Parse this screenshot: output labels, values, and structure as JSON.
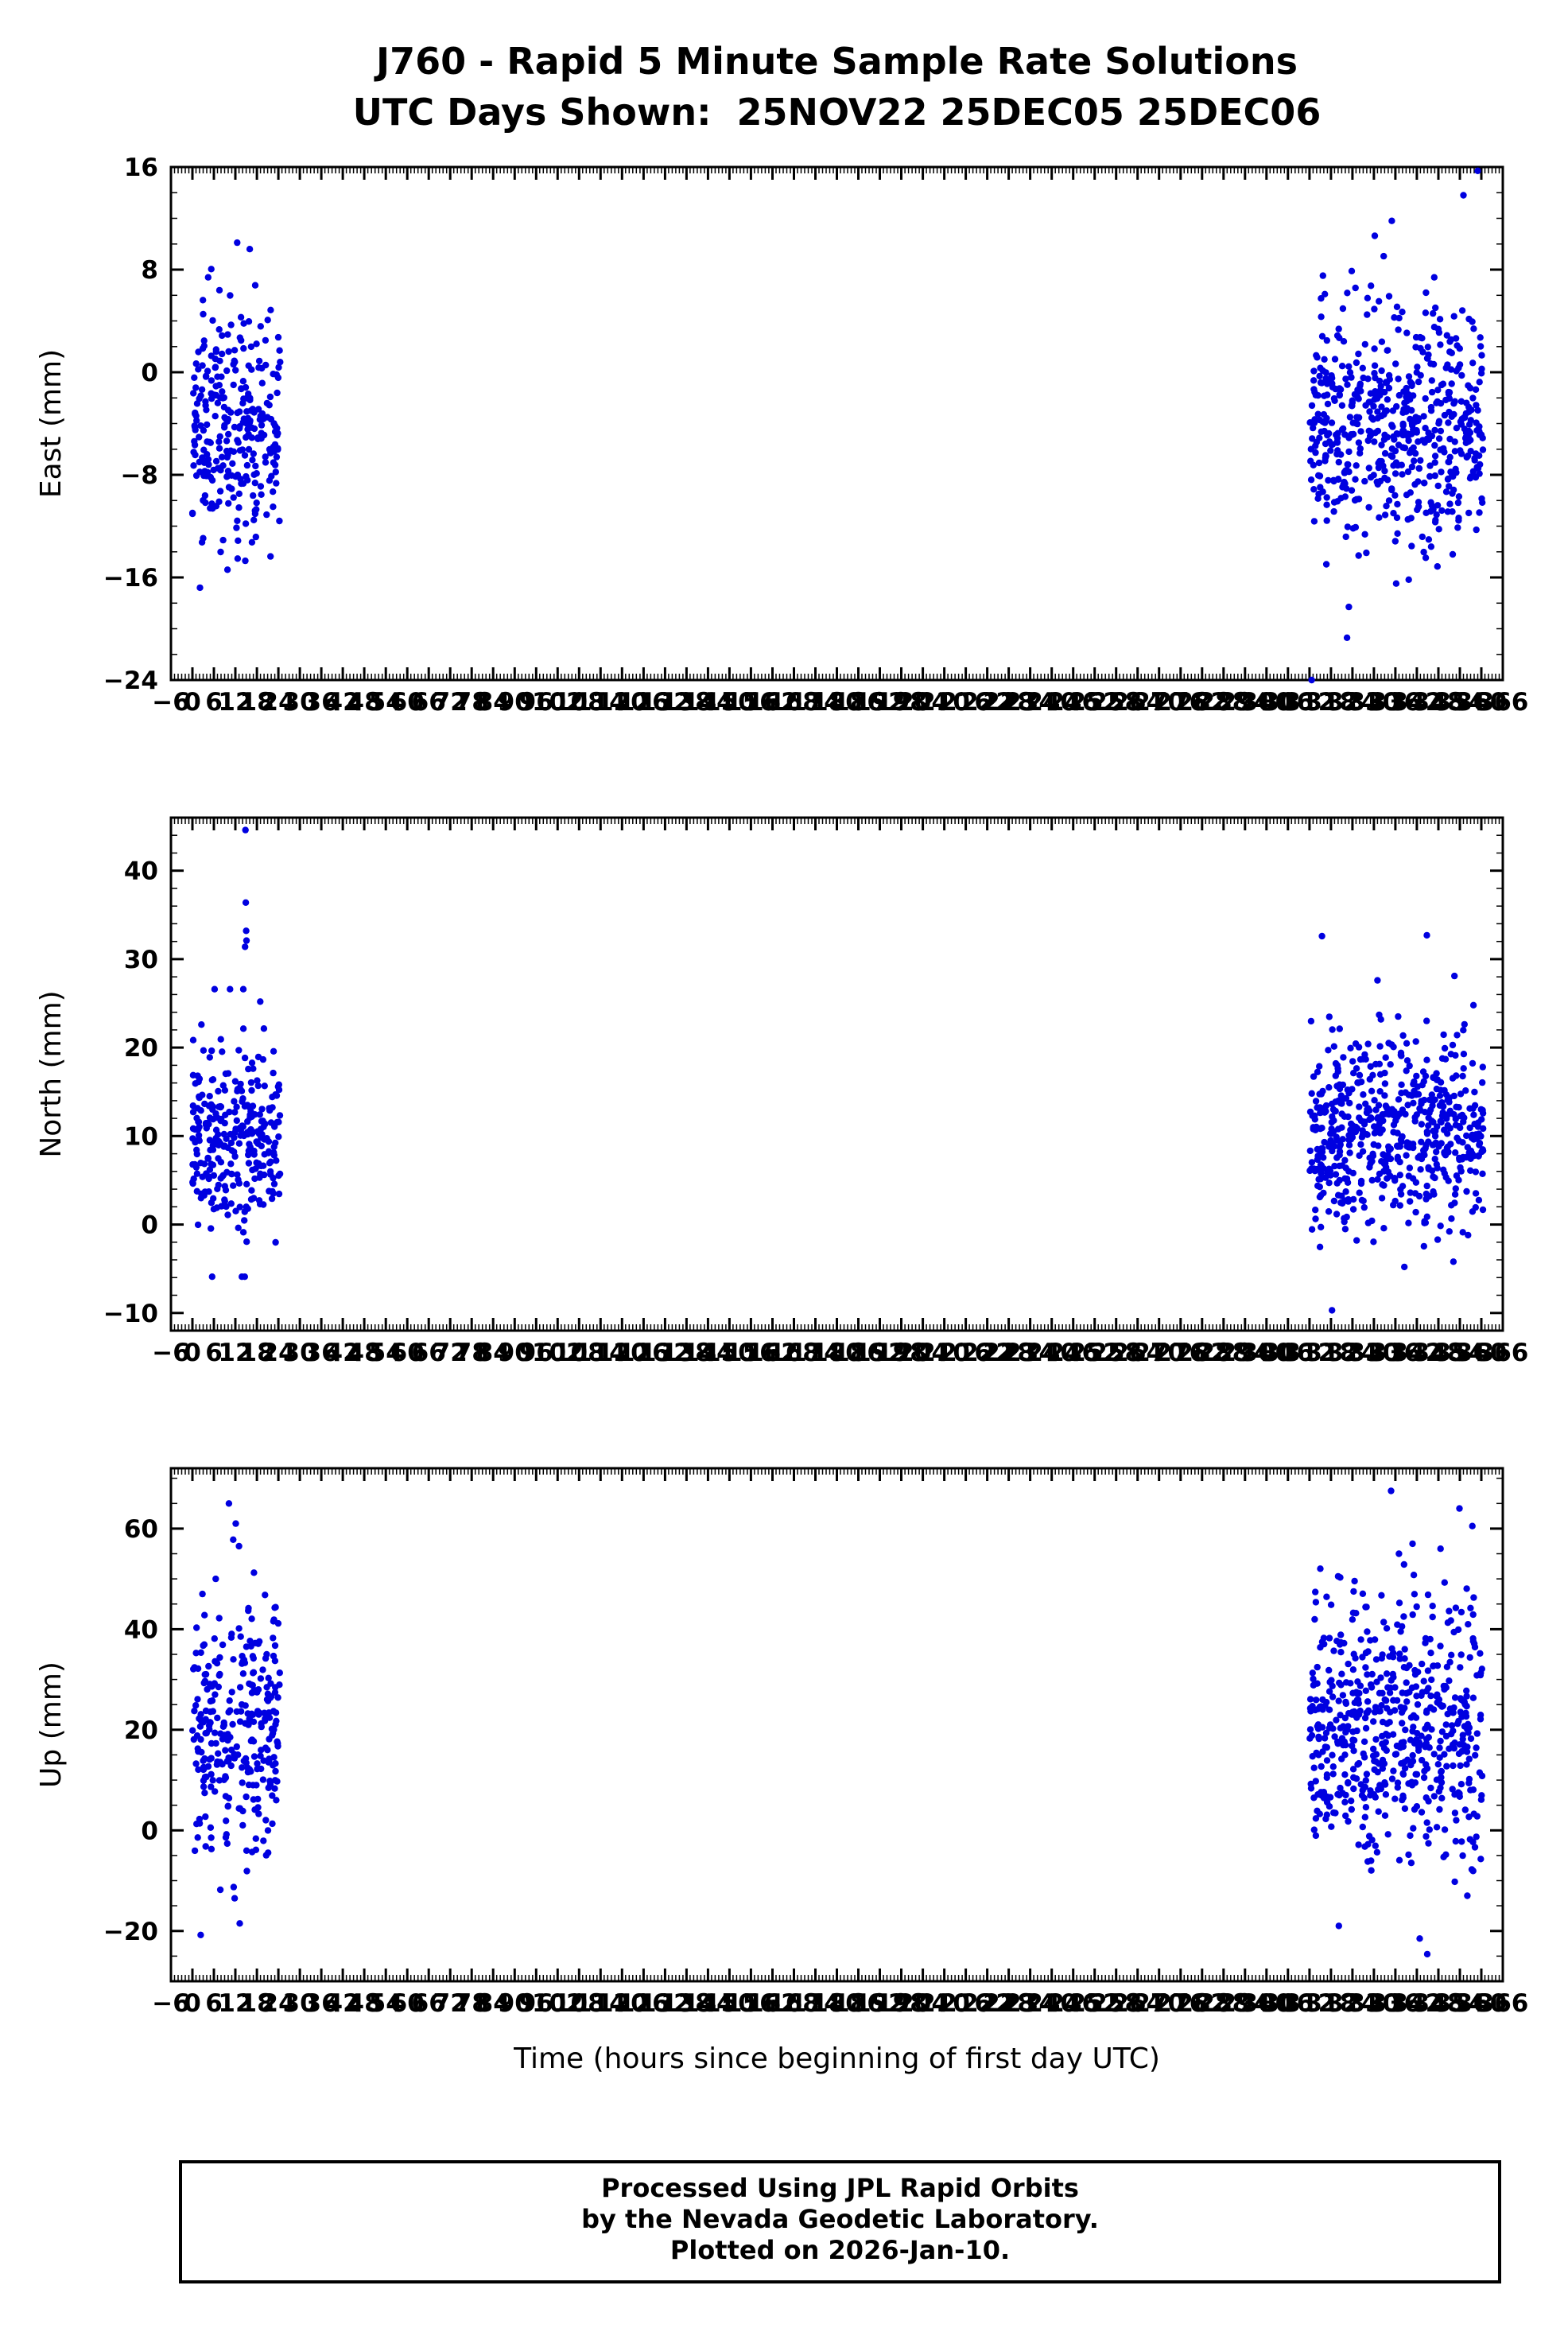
{
  "title": {
    "line1": "J760 - Rapid 5 Minute Sample Rate Solutions",
    "line2": "UTC Days Shown:  25NOV22 25DEC05 25DEC06"
  },
  "x_axis_title": "Time (hours since beginning of first day UTC)",
  "footer": {
    "line1": "Processed Using JPL Rapid Orbits",
    "line2": "by the Nevada Geodetic Laboratory.",
    "line3": "Plotted on 2026-Jan-10."
  },
  "style": {
    "point_color": "#0000e0",
    "axis_color": "#000000",
    "background": "#ffffff"
  },
  "chart_data": [
    {
      "type": "scatter",
      "name": "east",
      "ylabel": "East (mm)",
      "ylim": [
        -24,
        16
      ],
      "yticks": [
        -24,
        -16,
        -8,
        0,
        8,
        16
      ],
      "y_minor_step": 2,
      "xlim": [
        -6,
        366
      ],
      "x_major_step": 6,
      "x_minor_step": 1,
      "clusters": [
        {
          "x_range": [
            0,
            24.5
          ],
          "n": 290,
          "y_mean": -3.8,
          "y_sd": 4.6,
          "y_clip": [
            -15.5,
            8.5
          ],
          "seed": 101
        },
        {
          "x_range": [
            312,
            360.5
          ],
          "n": 580,
          "y_mean": -4.2,
          "y_sd": 4.8,
          "y_clip": [
            -16.5,
            11
          ],
          "seed": 202
        }
      ],
      "extra_points": [
        [
          2.1,
          -16.8
        ],
        [
          9.8,
          -15.4
        ],
        [
          12.5,
          10.1
        ],
        [
          16,
          9.6
        ],
        [
          4.4,
          7.4
        ],
        [
          312.6,
          -24
        ],
        [
          359,
          15.7
        ],
        [
          355,
          13.8
        ],
        [
          335,
          11.8
        ],
        [
          322.5,
          -20.7
        ],
        [
          323,
          -18.3
        ],
        [
          352,
          -14.2
        ],
        [
          346,
          -13.6
        ]
      ]
    },
    {
      "type": "scatter",
      "name": "north",
      "ylabel": "North (mm)",
      "ylim": [
        -12,
        46
      ],
      "yticks": [
        -10,
        0,
        10,
        20,
        30,
        40
      ],
      "y_minor_step": 2,
      "xlim": [
        -6,
        366
      ],
      "x_major_step": 6,
      "x_minor_step": 1,
      "clusters": [
        {
          "x_range": [
            0,
            24.5
          ],
          "n": 290,
          "y_mean": 9.8,
          "y_sd": 5.2,
          "y_clip": [
            -4,
            26
          ],
          "seed": 303
        },
        {
          "x_range": [
            312,
            360.5
          ],
          "n": 580,
          "y_mean": 10.5,
          "y_sd": 5.6,
          "y_clip": [
            -3.5,
            27.5
          ],
          "seed": 404
        }
      ],
      "extra_points": [
        [
          14.8,
          44.6
        ],
        [
          14.9,
          36.4
        ],
        [
          15,
          33.2
        ],
        [
          15.1,
          32.1
        ],
        [
          14.7,
          31.4
        ],
        [
          6.2,
          26.6
        ],
        [
          10.5,
          26.6
        ],
        [
          14.2,
          26.6
        ],
        [
          2.5,
          22.6
        ],
        [
          5.5,
          -5.9
        ],
        [
          13.8,
          -5.9
        ],
        [
          14.6,
          -5.9
        ],
        [
          315.5,
          32.6
        ],
        [
          344.8,
          32.7
        ],
        [
          352.5,
          28.1
        ],
        [
          357.8,
          24.8
        ],
        [
          331,
          27.6
        ],
        [
          318.3,
          -9.7
        ],
        [
          338.5,
          -4.8
        ],
        [
          352.2,
          -4.2
        ]
      ]
    },
    {
      "type": "scatter",
      "name": "up",
      "ylabel": "Up (mm)",
      "ylim": [
        -30,
        72
      ],
      "yticks": [
        -20,
        0,
        20,
        40,
        60
      ],
      "y_minor_step": 5,
      "xlim": [
        -6,
        366
      ],
      "x_major_step": 6,
      "x_minor_step": 1,
      "clusters": [
        {
          "x_range": [
            0,
            24.5
          ],
          "n": 290,
          "y_mean": 20,
          "y_sd": 13,
          "y_clip": [
            -12,
            52
          ],
          "seed": 505
        },
        {
          "x_range": [
            312,
            360.5
          ],
          "n": 580,
          "y_mean": 21,
          "y_sd": 13.5,
          "y_clip": [
            -15,
            53
          ],
          "seed": 606
        }
      ],
      "extra_points": [
        [
          10.2,
          65
        ],
        [
          12.1,
          61
        ],
        [
          11.4,
          57.8
        ],
        [
          13,
          56.5
        ],
        [
          2.8,
          47
        ],
        [
          6.5,
          50
        ],
        [
          13.2,
          -18.5
        ],
        [
          2.3,
          -20.8
        ],
        [
          11.8,
          -13.5
        ],
        [
          334.8,
          67.5
        ],
        [
          353.9,
          64
        ],
        [
          357.5,
          60.5
        ],
        [
          340.8,
          57
        ],
        [
          348.6,
          56
        ],
        [
          337,
          55
        ],
        [
          320.2,
          -19
        ],
        [
          342.8,
          -21.5
        ],
        [
          344.9,
          -24.6
        ],
        [
          356.1,
          -13
        ]
      ]
    }
  ]
}
